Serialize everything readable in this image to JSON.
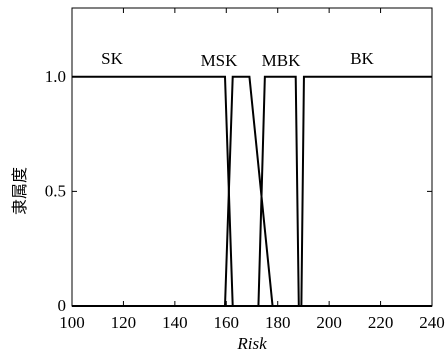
{
  "chart_data": {
    "type": "line",
    "xlabel": "Risk",
    "ylabel": "隶属度",
    "xlim": [
      100,
      240
    ],
    "ylim": [
      0,
      1.3
    ],
    "xticks": [
      100,
      120,
      140,
      160,
      180,
      200,
      220,
      240
    ],
    "yticks": [
      0,
      0.5,
      1.0
    ],
    "ytick_labels": [
      "0",
      "0.5",
      "1.0"
    ],
    "grid": false,
    "line_color": "#000000",
    "series": [
      {
        "name": "SK",
        "x": [
          100,
          159.5,
          162.5,
          240
        ],
        "y": [
          1,
          1,
          0,
          0
        ]
      },
      {
        "name": "MSK",
        "x": [
          100,
          159.5,
          162.5,
          169,
          178,
          240
        ],
        "y": [
          0,
          0,
          1,
          1,
          0,
          0
        ]
      },
      {
        "name": "MBK",
        "x": [
          100,
          172.5,
          175,
          187,
          188.2,
          240
        ],
        "y": [
          0,
          0,
          1,
          1,
          0,
          0
        ]
      },
      {
        "name": "BK",
        "x": [
          100,
          189.2,
          190.2,
          240
        ],
        "y": [
          0,
          0,
          1,
          1
        ]
      }
    ]
  }
}
